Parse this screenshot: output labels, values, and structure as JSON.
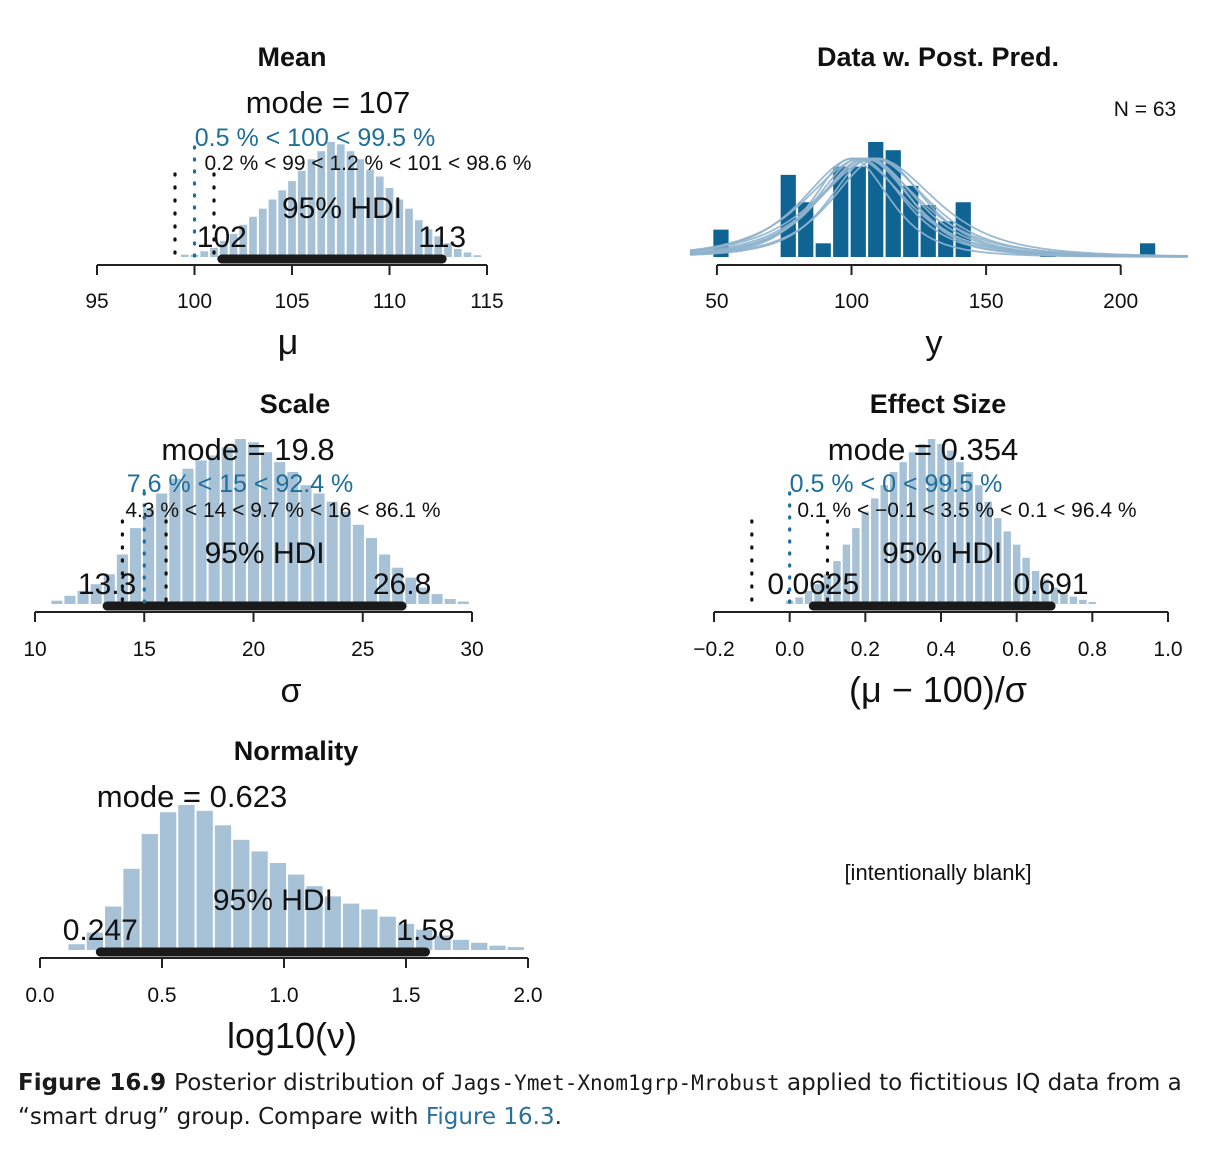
{
  "colors": {
    "hist": "#a7c2d6",
    "hdi_bar": "#1a1a1a",
    "comp_blue": "#1e6f9a",
    "data_bar": "#0f6494",
    "pred_line": "#8fb3cd",
    "axis": "#222222"
  },
  "caption": {
    "label": "Figure 16.9",
    "text1": "Posterior distribution of",
    "code": "Jags-Ymet-Xnom1grp-Mrobust",
    "text2": "applied to fictitious IQ data from a “smart drug” group. Compare with",
    "ref": "Figure 16.3",
    "text3": "."
  },
  "chart_data": [
    {
      "id": "mean",
      "type": "bar",
      "title": "Mean",
      "xlabel": "μ",
      "mode_text": "mode = 107",
      "comp_text": "0.5 % < 100 < 99.5 %",
      "rope_text": "0.2 % < 99 < 1.2 % < 101 < 98.6 %",
      "hdi_text": "95% HDI",
      "hdi": [
        101.4,
        112.7
      ],
      "hdi_labels": [
        "102",
        "113"
      ],
      "comp_value": 100,
      "rope": [
        99,
        101
      ],
      "xlim": [
        95,
        115
      ],
      "ticks": [
        95,
        100,
        105,
        110,
        115
      ],
      "tick_labels": [
        "95",
        "100",
        "105",
        "110",
        "115"
      ],
      "bin_width": 0.5,
      "bins": [
        {
          "x": 99.5,
          "density": 0.02
        },
        {
          "x": 100.0,
          "density": 0.02
        },
        {
          "x": 100.5,
          "density": 0.05
        },
        {
          "x": 101.0,
          "density": 0.08
        },
        {
          "x": 101.5,
          "density": 0.14
        },
        {
          "x": 102.0,
          "density": 0.2
        },
        {
          "x": 102.5,
          "density": 0.28
        },
        {
          "x": 103.0,
          "density": 0.35
        },
        {
          "x": 103.5,
          "density": 0.42
        },
        {
          "x": 104.0,
          "density": 0.5
        },
        {
          "x": 104.5,
          "density": 0.58
        },
        {
          "x": 105.0,
          "density": 0.66
        },
        {
          "x": 105.5,
          "density": 0.75
        },
        {
          "x": 106.0,
          "density": 0.85
        },
        {
          "x": 106.5,
          "density": 0.92
        },
        {
          "x": 107.0,
          "density": 1.0
        },
        {
          "x": 107.5,
          "density": 0.98
        },
        {
          "x": 108.0,
          "density": 0.92
        },
        {
          "x": 108.5,
          "density": 0.85
        },
        {
          "x": 109.0,
          "density": 0.76
        },
        {
          "x": 109.5,
          "density": 0.7
        },
        {
          "x": 110.0,
          "density": 0.6
        },
        {
          "x": 110.5,
          "density": 0.5
        },
        {
          "x": 111.0,
          "density": 0.42
        },
        {
          "x": 111.5,
          "density": 0.32
        },
        {
          "x": 112.0,
          "density": 0.24
        },
        {
          "x": 112.5,
          "density": 0.18
        },
        {
          "x": 113.0,
          "density": 0.12
        },
        {
          "x": 113.5,
          "density": 0.07
        },
        {
          "x": 114.0,
          "density": 0.04
        },
        {
          "x": 114.5,
          "density": 0.015
        }
      ]
    },
    {
      "id": "data",
      "type": "bar",
      "title": "Data w. Post. Pred.",
      "xlabel": "y",
      "n_text": "N = 63",
      "xlim": [
        40,
        225
      ],
      "ticks": [
        50,
        100,
        150,
        200
      ],
      "tick_labels": [
        "50",
        "100",
        "150",
        "200"
      ],
      "bin_width": 6.4,
      "bins": [
        {
          "x": 51.5,
          "count": 1
        },
        {
          "x": 76.5,
          "count": 3
        },
        {
          "x": 83,
          "count": 2
        },
        {
          "x": 89.5,
          "count": 0.5
        },
        {
          "x": 96,
          "count": 3.3
        },
        {
          "x": 102.5,
          "count": 3.3
        },
        {
          "x": 109,
          "count": 4.2
        },
        {
          "x": 115.5,
          "count": 3.9
        },
        {
          "x": 122,
          "count": 2.6
        },
        {
          "x": 128.5,
          "count": 1.9
        },
        {
          "x": 135,
          "count": 1.3
        },
        {
          "x": 141.5,
          "count": 2
        },
        {
          "x": 173,
          "count": 0.2
        },
        {
          "x": 210,
          "count": 0.5
        }
      ],
      "predictive": {
        "centers": [
          100,
          103,
          106,
          108,
          110,
          104,
          107,
          101,
          109,
          105
        ],
        "widths": [
          15,
          17,
          19,
          21,
          18,
          22,
          16,
          20,
          23,
          18
        ],
        "peak": 3.6
      }
    },
    {
      "id": "scale",
      "type": "bar",
      "title": "Scale",
      "xlabel": "σ",
      "mode_text": "mode = 19.8",
      "comp_text": "7.6 % < 15 < 92.4 %",
      "rope_text": "4.3 % < 14 < 9.7 % < 16 < 86.1 %",
      "hdi_text": "95% HDI",
      "hdi": [
        13.3,
        26.8
      ],
      "hdi_labels": [
        "13.3",
        "26.8"
      ],
      "comp_value": 15,
      "rope": [
        14,
        16
      ],
      "xlim": [
        10,
        30
      ],
      "ticks": [
        10,
        15,
        20,
        25,
        30
      ],
      "tick_labels": [
        "10",
        "15",
        "20",
        "25",
        "30"
      ],
      "bin_width": 0.6,
      "bins": [
        {
          "x": 11.0,
          "density": 0.02
        },
        {
          "x": 11.6,
          "density": 0.05
        },
        {
          "x": 12.2,
          "density": 0.08
        },
        {
          "x": 12.8,
          "density": 0.12
        },
        {
          "x": 13.4,
          "density": 0.18
        },
        {
          "x": 14.0,
          "density": 0.3
        },
        {
          "x": 14.6,
          "density": 0.46
        },
        {
          "x": 15.2,
          "density": 0.58
        },
        {
          "x": 15.8,
          "density": 0.67
        },
        {
          "x": 16.4,
          "density": 0.76
        },
        {
          "x": 17.0,
          "density": 0.82
        },
        {
          "x": 17.6,
          "density": 0.87
        },
        {
          "x": 18.2,
          "density": 0.9
        },
        {
          "x": 18.8,
          "density": 0.95
        },
        {
          "x": 19.4,
          "density": 1.0
        },
        {
          "x": 20.0,
          "density": 0.98
        },
        {
          "x": 20.6,
          "density": 0.92
        },
        {
          "x": 21.2,
          "density": 0.86
        },
        {
          "x": 21.8,
          "density": 0.8
        },
        {
          "x": 22.4,
          "density": 0.72
        },
        {
          "x": 23.0,
          "density": 0.67
        },
        {
          "x": 23.6,
          "density": 0.62
        },
        {
          "x": 24.2,
          "density": 0.56
        },
        {
          "x": 24.8,
          "density": 0.48
        },
        {
          "x": 25.4,
          "density": 0.4
        },
        {
          "x": 26.0,
          "density": 0.3
        },
        {
          "x": 26.6,
          "density": 0.22
        },
        {
          "x": 27.2,
          "density": 0.16
        },
        {
          "x": 27.8,
          "density": 0.1
        },
        {
          "x": 28.4,
          "density": 0.06
        },
        {
          "x": 29.0,
          "density": 0.03
        },
        {
          "x": 29.6,
          "density": 0.015
        }
      ]
    },
    {
      "id": "effect",
      "type": "bar",
      "title": "Effect Size",
      "xlabel": "(μ − 100)/σ",
      "mode_text": "mode = 0.354",
      "comp_text": "0.5 % < 0 < 99.5 %",
      "rope_text": "0.1 % < −0.1 < 3.5 % < 0.1 < 96.4 %",
      "hdi_text": "95% HDI",
      "hdi": [
        0.0625,
        0.691
      ],
      "hdi_labels": [
        "0.0625",
        "0.691"
      ],
      "comp_value": 0,
      "rope": [
        -0.1,
        0.1
      ],
      "xlim": [
        -0.2,
        1.0
      ],
      "ticks": [
        -0.2,
        0.0,
        0.2,
        0.4,
        0.6,
        0.8,
        1.0
      ],
      "tick_labels": [
        "−0.2",
        "0.0",
        "0.2",
        "0.4",
        "0.6",
        "0.8",
        "1.0"
      ],
      "bin_width": 0.025,
      "bins": [
        {
          "x": 0.0,
          "density": 0.02
        },
        {
          "x": 0.025,
          "density": 0.04
        },
        {
          "x": 0.05,
          "density": 0.08
        },
        {
          "x": 0.075,
          "density": 0.12
        },
        {
          "x": 0.1,
          "density": 0.18
        },
        {
          "x": 0.125,
          "density": 0.26
        },
        {
          "x": 0.15,
          "density": 0.36
        },
        {
          "x": 0.175,
          "density": 0.46
        },
        {
          "x": 0.2,
          "density": 0.56
        },
        {
          "x": 0.225,
          "density": 0.64
        },
        {
          "x": 0.25,
          "density": 0.72
        },
        {
          "x": 0.275,
          "density": 0.8
        },
        {
          "x": 0.3,
          "density": 0.86
        },
        {
          "x": 0.325,
          "density": 0.92
        },
        {
          "x": 0.35,
          "density": 0.97
        },
        {
          "x": 0.375,
          "density": 1.0
        },
        {
          "x": 0.4,
          "density": 0.97
        },
        {
          "x": 0.425,
          "density": 0.93
        },
        {
          "x": 0.45,
          "density": 0.86
        },
        {
          "x": 0.475,
          "density": 0.8
        },
        {
          "x": 0.5,
          "density": 0.72
        },
        {
          "x": 0.525,
          "density": 0.62
        },
        {
          "x": 0.55,
          "density": 0.52
        },
        {
          "x": 0.575,
          "density": 0.44
        },
        {
          "x": 0.6,
          "density": 0.36
        },
        {
          "x": 0.625,
          "density": 0.28
        },
        {
          "x": 0.65,
          "density": 0.2
        },
        {
          "x": 0.675,
          "density": 0.15
        },
        {
          "x": 0.7,
          "density": 0.1
        },
        {
          "x": 0.725,
          "density": 0.07
        },
        {
          "x": 0.75,
          "density": 0.045
        },
        {
          "x": 0.775,
          "density": 0.025
        },
        {
          "x": 0.8,
          "density": 0.012
        }
      ]
    },
    {
      "id": "normality",
      "type": "bar",
      "title": "Normality",
      "xlabel": "log10(ν)",
      "mode_text": "mode = 0.623",
      "hdi_text": "95% HDI",
      "hdi": [
        0.247,
        1.58
      ],
      "hdi_labels": [
        "0.247",
        "1.58"
      ],
      "xlim": [
        0.0,
        2.0
      ],
      "ticks": [
        0.0,
        0.5,
        1.0,
        1.5,
        2.0
      ],
      "tick_labels": [
        "0.0",
        "0.5",
        "1.0",
        "1.5",
        "2.0"
      ],
      "bin_width": 0.075,
      "bins": [
        {
          "x": 0.15,
          "density": 0.04
        },
        {
          "x": 0.225,
          "density": 0.12
        },
        {
          "x": 0.3,
          "density": 0.3
        },
        {
          "x": 0.375,
          "density": 0.56
        },
        {
          "x": 0.45,
          "density": 0.8
        },
        {
          "x": 0.525,
          "density": 0.95
        },
        {
          "x": 0.6,
          "density": 1.0
        },
        {
          "x": 0.675,
          "density": 0.96
        },
        {
          "x": 0.75,
          "density": 0.86
        },
        {
          "x": 0.825,
          "density": 0.76
        },
        {
          "x": 0.9,
          "density": 0.68
        },
        {
          "x": 0.975,
          "density": 0.6
        },
        {
          "x": 1.05,
          "density": 0.52
        },
        {
          "x": 1.125,
          "density": 0.44
        },
        {
          "x": 1.2,
          "density": 0.37
        },
        {
          "x": 1.275,
          "density": 0.32
        },
        {
          "x": 1.35,
          "density": 0.28
        },
        {
          "x": 1.425,
          "density": 0.23
        },
        {
          "x": 1.5,
          "density": 0.18
        },
        {
          "x": 1.575,
          "density": 0.14
        },
        {
          "x": 1.65,
          "density": 0.1
        },
        {
          "x": 1.725,
          "density": 0.07
        },
        {
          "x": 1.8,
          "density": 0.05
        },
        {
          "x": 1.875,
          "density": 0.03
        },
        {
          "x": 1.95,
          "density": 0.02
        }
      ]
    },
    {
      "id": "blank",
      "type": "table",
      "text": "[intentionally blank]"
    }
  ]
}
